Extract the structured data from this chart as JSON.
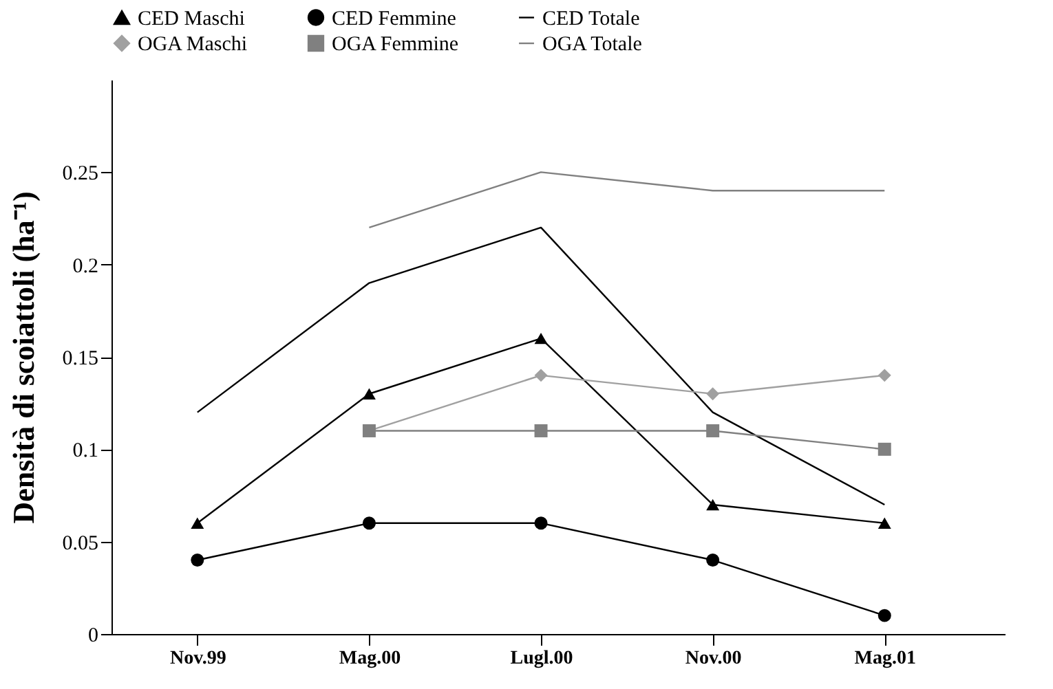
{
  "chart_data": {
    "type": "line",
    "ylabel": "Densità di scoiattoli (ha⁻¹)",
    "categories": [
      "Nov.99",
      "Mag.00",
      "Lugl.00",
      "Nov.00",
      "Mag.01"
    ],
    "ylim": [
      0,
      0.3
    ],
    "yticks": [
      0,
      0.05,
      0.1,
      0.15,
      0.2,
      0.25
    ],
    "grid": false,
    "legend": "top",
    "series": [
      {
        "name": "CED Maschi",
        "color": "#000000",
        "marker": "triangle",
        "values": [
          0.06,
          0.13,
          0.16,
          0.07,
          0.06
        ]
      },
      {
        "name": "CED Femmine",
        "color": "#000000",
        "marker": "circle",
        "values": [
          0.04,
          0.06,
          0.06,
          0.04,
          0.01
        ]
      },
      {
        "name": "CED Totale",
        "color": "#000000",
        "marker": "none",
        "values": [
          0.12,
          0.19,
          0.22,
          0.12,
          0.07
        ]
      },
      {
        "name": "OGA Maschi",
        "color": "#a0a0a0",
        "marker": "diamond",
        "values": [
          null,
          0.11,
          0.14,
          0.13,
          0.14
        ]
      },
      {
        "name": "OGA Femmine",
        "color": "#808080",
        "marker": "square",
        "values": [
          null,
          0.11,
          0.11,
          0.11,
          0.1
        ]
      },
      {
        "name": "OGA Totale",
        "color": "#808080",
        "marker": "none",
        "values": [
          null,
          0.22,
          0.25,
          0.24,
          0.24
        ]
      }
    ]
  }
}
